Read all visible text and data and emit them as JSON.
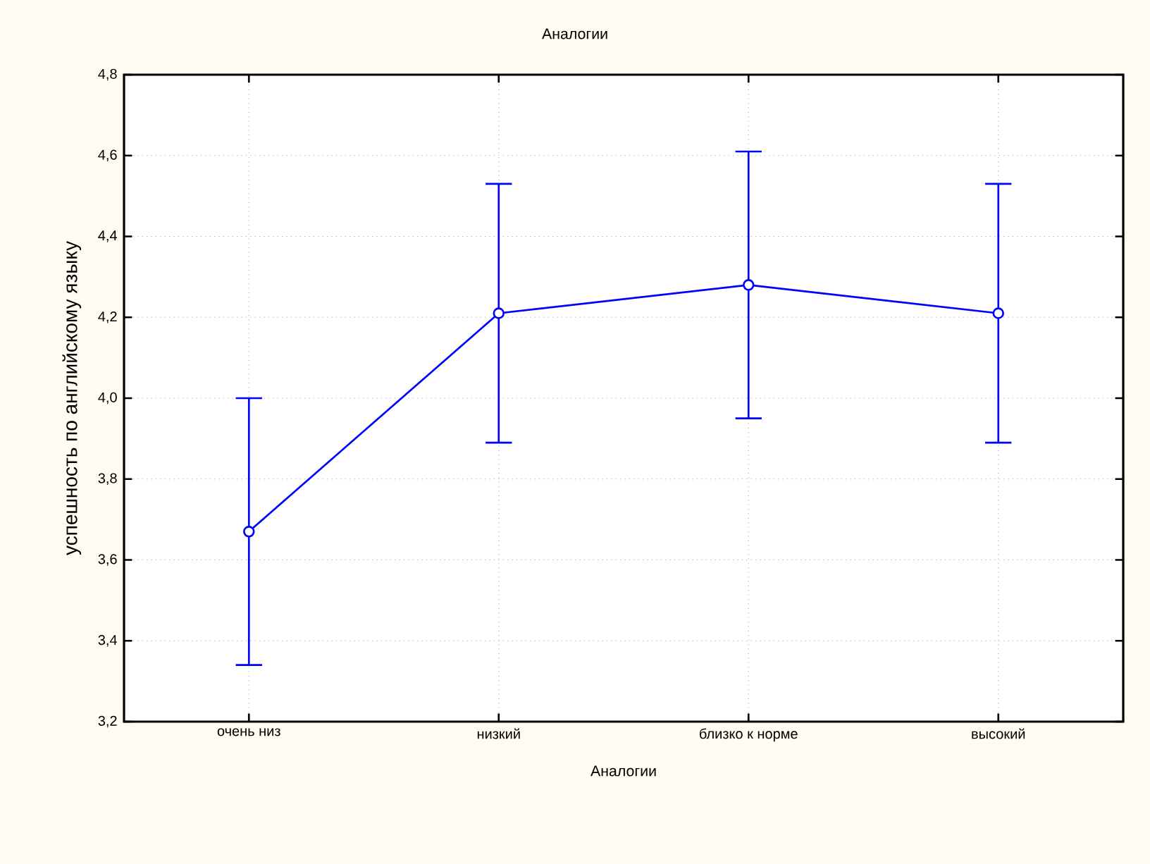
{
  "chart_data": {
    "type": "line",
    "title": "Аналогии",
    "xlabel": "Аналогии",
    "ylabel": "успешность по английскому языку",
    "categories": [
      "очень низ",
      "низкий",
      "близко к норме",
      "высокий"
    ],
    "series": [
      {
        "color": "#0000ff",
        "values": [
          3.67,
          4.21,
          4.28,
          4.21
        ],
        "errors": [
          0.33,
          0.32,
          0.33,
          0.32
        ]
      }
    ],
    "ylim": [
      3.2,
      4.8
    ],
    "yticks": [
      {
        "value": 3.2,
        "label": "3,2"
      },
      {
        "value": 3.4,
        "label": "3,4"
      },
      {
        "value": 3.6,
        "label": "3,6"
      },
      {
        "value": 3.8,
        "label": "3,8"
      },
      {
        "value": 4.0,
        "label": "4,0"
      },
      {
        "value": 4.2,
        "label": "4,2"
      },
      {
        "value": 4.4,
        "label": "4,4"
      },
      {
        "value": 4.6,
        "label": "4,6"
      },
      {
        "value": 4.8,
        "label": "4,8"
      }
    ],
    "grid": true,
    "marker": "circle",
    "line_style": "solid"
  }
}
